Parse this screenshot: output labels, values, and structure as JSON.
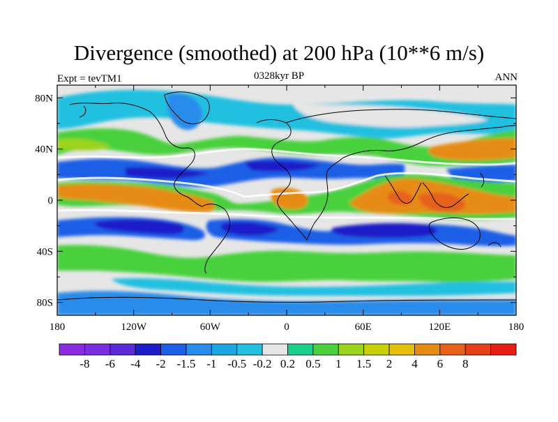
{
  "title": "Divergence (smoothed) at 200 hPa (10**6 m/s)",
  "experiment_label": "Expt = tevTM1",
  "period_label": "0328kyr BP",
  "season_label": "ANN",
  "lat_ticks": [
    "80N",
    "40N",
    "0",
    "40S",
    "80S"
  ],
  "lon_ticks": [
    "180",
    "120W",
    "60W",
    "0",
    "60E",
    "120E",
    "180"
  ],
  "colorbar": {
    "colors": [
      "#8a2be2",
      "#7a2ee0",
      "#5a2ad6",
      "#1c1cc8",
      "#1c5ee6",
      "#2a8cea",
      "#1ca6e0",
      "#24c0e0",
      "#e6e6e6",
      "#1cd08a",
      "#4ad03c",
      "#9ad41e",
      "#c8d00a",
      "#e6be0e",
      "#e68c14",
      "#e6621a",
      "#e64018",
      "#e61e14"
    ],
    "labels": [
      "-8",
      "-6",
      "-4",
      "-2",
      "-1.5",
      "-1",
      "-0.5",
      "-0.2",
      "0.2",
      "0.5",
      "1",
      "1.5",
      "2",
      "4",
      "6",
      "8"
    ]
  },
  "colors": {
    "strong_neg": "#1c1cc8",
    "neg": "#1c5ee6",
    "weak_neg": "#2a8cea",
    "light_neg": "#24c0e0",
    "neutral": "#e6e6e6",
    "light_pos": "#1cd08a",
    "pos": "#4ad03c",
    "yellow_pos": "#9ad41e",
    "orange_pos": "#e68c14",
    "red_pos": "#e6621a"
  }
}
